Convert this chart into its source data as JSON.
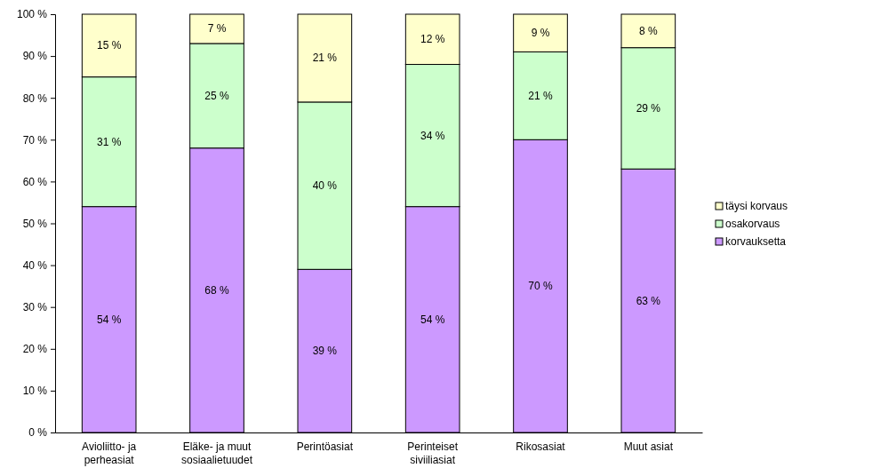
{
  "chart_data": {
    "type": "bar",
    "stacked": true,
    "categories": [
      "Avioliitto- ja perheasiat",
      "Eläke- ja muut sosiaalietuudet",
      "Perintöasiat",
      "Perinteiset siviiliasiat",
      "Rikosasiat",
      "Muut asiat"
    ],
    "series": [
      {
        "name": "korvauksetta",
        "color": "#cc99ff",
        "values": [
          54,
          68,
          39,
          54,
          70,
          63
        ],
        "value_labels": [
          "54 %",
          "68 %",
          "39 %",
          "54 %",
          "70 %",
          "63 %"
        ]
      },
      {
        "name": "osakorvaus",
        "color": "#ccffcc",
        "values": [
          31,
          25,
          40,
          34,
          21,
          29
        ],
        "value_labels": [
          "31 %",
          "25 %",
          "40 %",
          "34 %",
          "21 %",
          "29 %"
        ]
      },
      {
        "name": "täysi korvaus",
        "color": "#ffffcc",
        "values": [
          15,
          7,
          21,
          12,
          9,
          8
        ],
        "value_labels": [
          "15 %",
          "7 %",
          "21 %",
          "12 %",
          "9 %",
          "8 %"
        ]
      }
    ],
    "ylim": [
      0,
      100
    ],
    "yticks": [
      {
        "value": 0,
        "label": "0 %"
      },
      {
        "value": 10,
        "label": "10 %"
      },
      {
        "value": 20,
        "label": "20 %"
      },
      {
        "value": 30,
        "label": "30 %"
      },
      {
        "value": 40,
        "label": "40 %"
      },
      {
        "value": 50,
        "label": "50 %"
      },
      {
        "value": 60,
        "label": "60 %"
      },
      {
        "value": 70,
        "label": "70 %"
      },
      {
        "value": 80,
        "label": "80 %"
      },
      {
        "value": 90,
        "label": "90 %"
      },
      {
        "value": 100,
        "label": "100 %"
      }
    ],
    "grid": false,
    "legend": "right"
  }
}
